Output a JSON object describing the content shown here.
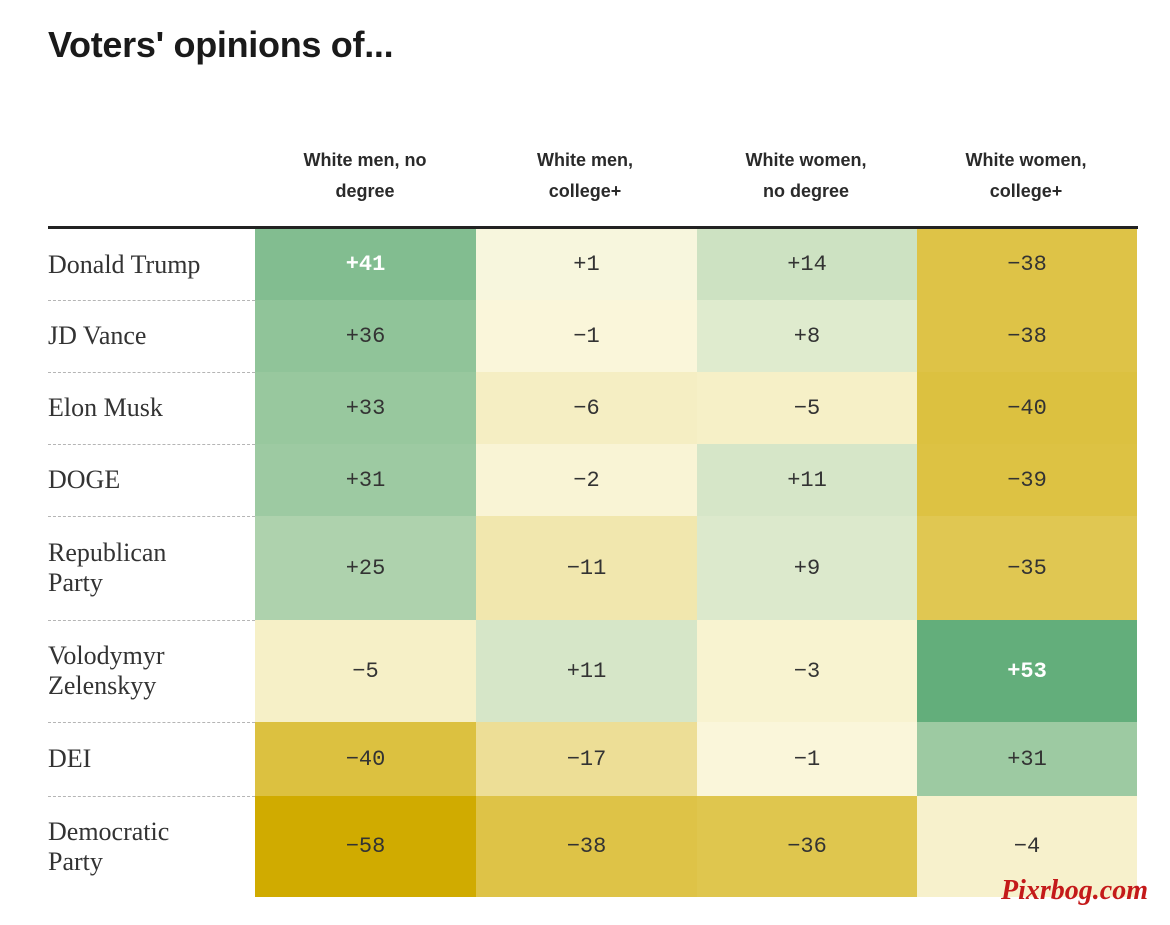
{
  "title": "Voters' opinions of...",
  "watermark": "Pixrbog.com",
  "chart_data": {
    "type": "heatmap",
    "title": "Voters' opinions of...",
    "columns": [
      {
        "line1": "White men, no",
        "line2": "degree",
        "label": "White men, no degree"
      },
      {
        "line1": "White men,",
        "line2": "college+",
        "label": "White men, college+"
      },
      {
        "line1": "White women,",
        "line2": "no degree",
        "label": "White women, no degree"
      },
      {
        "line1": "White women,",
        "line2": "college+",
        "label": "White women, college+"
      }
    ],
    "rows": [
      {
        "line1": "Donald Trump",
        "line2": "",
        "values": [
          41,
          1,
          14,
          -38
        ]
      },
      {
        "line1": "JD Vance",
        "line2": "",
        "values": [
          36,
          -1,
          8,
          -38
        ]
      },
      {
        "line1": "Elon Musk",
        "line2": "",
        "values": [
          33,
          -6,
          -5,
          -40
        ]
      },
      {
        "line1": "DOGE",
        "line2": "",
        "values": [
          31,
          -2,
          11,
          -39
        ]
      },
      {
        "line1": "Republican",
        "line2": "Party",
        "values": [
          25,
          -11,
          9,
          -35
        ]
      },
      {
        "line1": "Volodymyr",
        "line2": "Zelenskyy",
        "values": [
          -5,
          11,
          -3,
          53
        ]
      },
      {
        "line1": "DEI",
        "line2": "",
        "values": [
          -40,
          -17,
          -1,
          31
        ]
      },
      {
        "line1": "Democratic",
        "line2": "Party",
        "values": [
          -58,
          -38,
          -36,
          -4
        ]
      }
    ],
    "display_values": [
      [
        "+41",
        "+1",
        "+14",
        "−38"
      ],
      [
        "+36",
        "−1",
        "+8",
        "−38"
      ],
      [
        "+33",
        "−6",
        "−5",
        "−40"
      ],
      [
        "+31",
        "−2",
        "+11",
        "−39"
      ],
      [
        "+25",
        "−11",
        "+9",
        "−35"
      ],
      [
        "−5",
        "+11",
        "−3",
        "+53"
      ],
      [
        "−40",
        "−17",
        "−1",
        "+31"
      ],
      [
        "−58",
        "−38",
        "−36",
        "−4"
      ]
    ],
    "colors": {
      "positive": "#56a873",
      "negative": "#d0ab00",
      "neutral": "#fbf8e0"
    }
  }
}
